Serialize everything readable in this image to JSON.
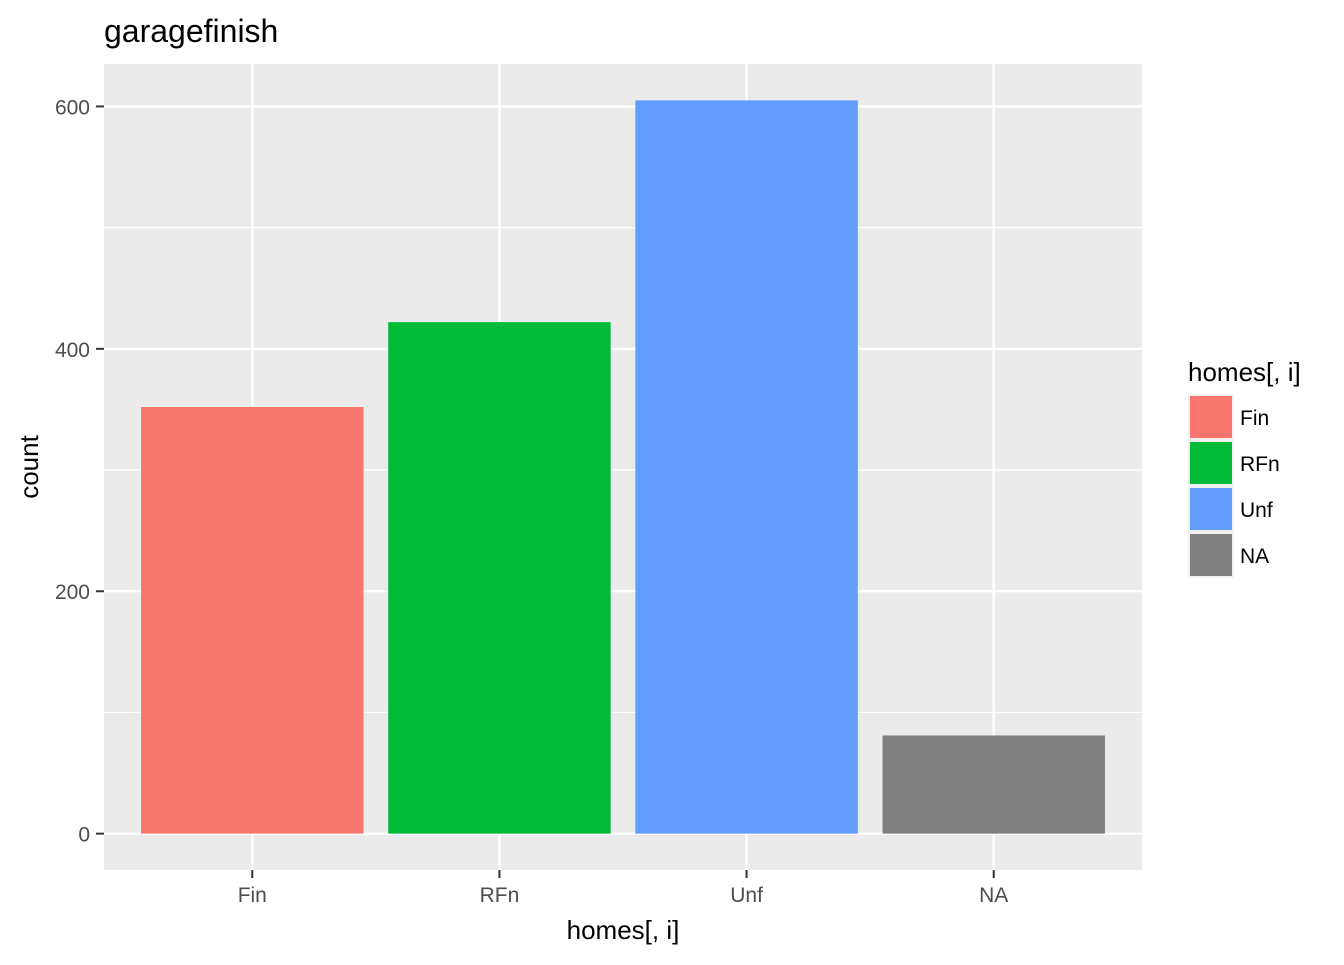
{
  "chart_data": {
    "type": "bar",
    "title": "garagefinish",
    "xlabel": "homes[, i]",
    "ylabel": "count",
    "categories": [
      "Fin",
      "RFn",
      "Unf",
      "NA"
    ],
    "values": [
      352,
      422,
      605,
      81
    ],
    "colors": [
      "#F8766D",
      "#00BA38",
      "#619CFF",
      "#808080"
    ],
    "ylim": [
      -30,
      635
    ],
    "yticks": [
      0,
      200,
      400,
      600
    ],
    "grid": true,
    "legend": {
      "title": "homes[, i]",
      "placement": "right",
      "entries": [
        "Fin",
        "RFn",
        "Unf",
        "NA"
      ]
    }
  }
}
